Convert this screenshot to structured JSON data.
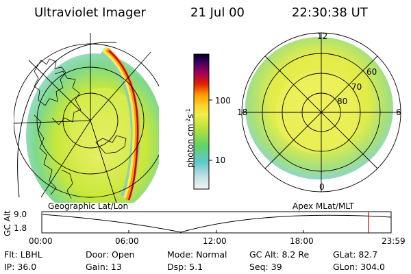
{
  "header": {
    "title": "Ultraviolet Imager",
    "date": "21 Jul 00",
    "time": "22:30:38 UT"
  },
  "colorbar": {
    "unit_label": "photon cm",
    "unit_sup1": "-2",
    "unit_mid": "s",
    "unit_sup2": "-1",
    "tick_100": "100",
    "tick_10": "10"
  },
  "left_map": {
    "caption": "Geographic Lat/Lon"
  },
  "right_map": {
    "caption": "Apex MLat/MLT",
    "mlt_top": "12",
    "mlt_left": "18",
    "mlt_right": "6",
    "mlt_bottom": "0",
    "lat_60": "60",
    "lat_70": "70",
    "lat_80": "80"
  },
  "timeline": {
    "axis_label": "GC Alt",
    "y_top": "9.0",
    "y_bottom": "1.8",
    "ticks": [
      "00:00",
      "06:00",
      "12:00",
      "18:00",
      "23:59"
    ]
  },
  "info": {
    "flt": "Flt: LBHL",
    "door": "Door: Open",
    "mode": "Mode: Normal",
    "gc_alt": "GC Alt: 8.2 Re",
    "glat": "GLat:  82.7",
    "ip": "IP: 36.0",
    "gain": "Gain: 13",
    "dsp": "Dsp:    5.1",
    "seq": "Seq: 39",
    "glon": "GLon: 304.0"
  },
  "colors": {
    "background": "#ffffff",
    "low": "#bfe0c8",
    "mid": "#e8ef3a",
    "high": "#ff9900",
    "peak": "#cc0000",
    "current_time_marker": "#cc0000"
  }
}
